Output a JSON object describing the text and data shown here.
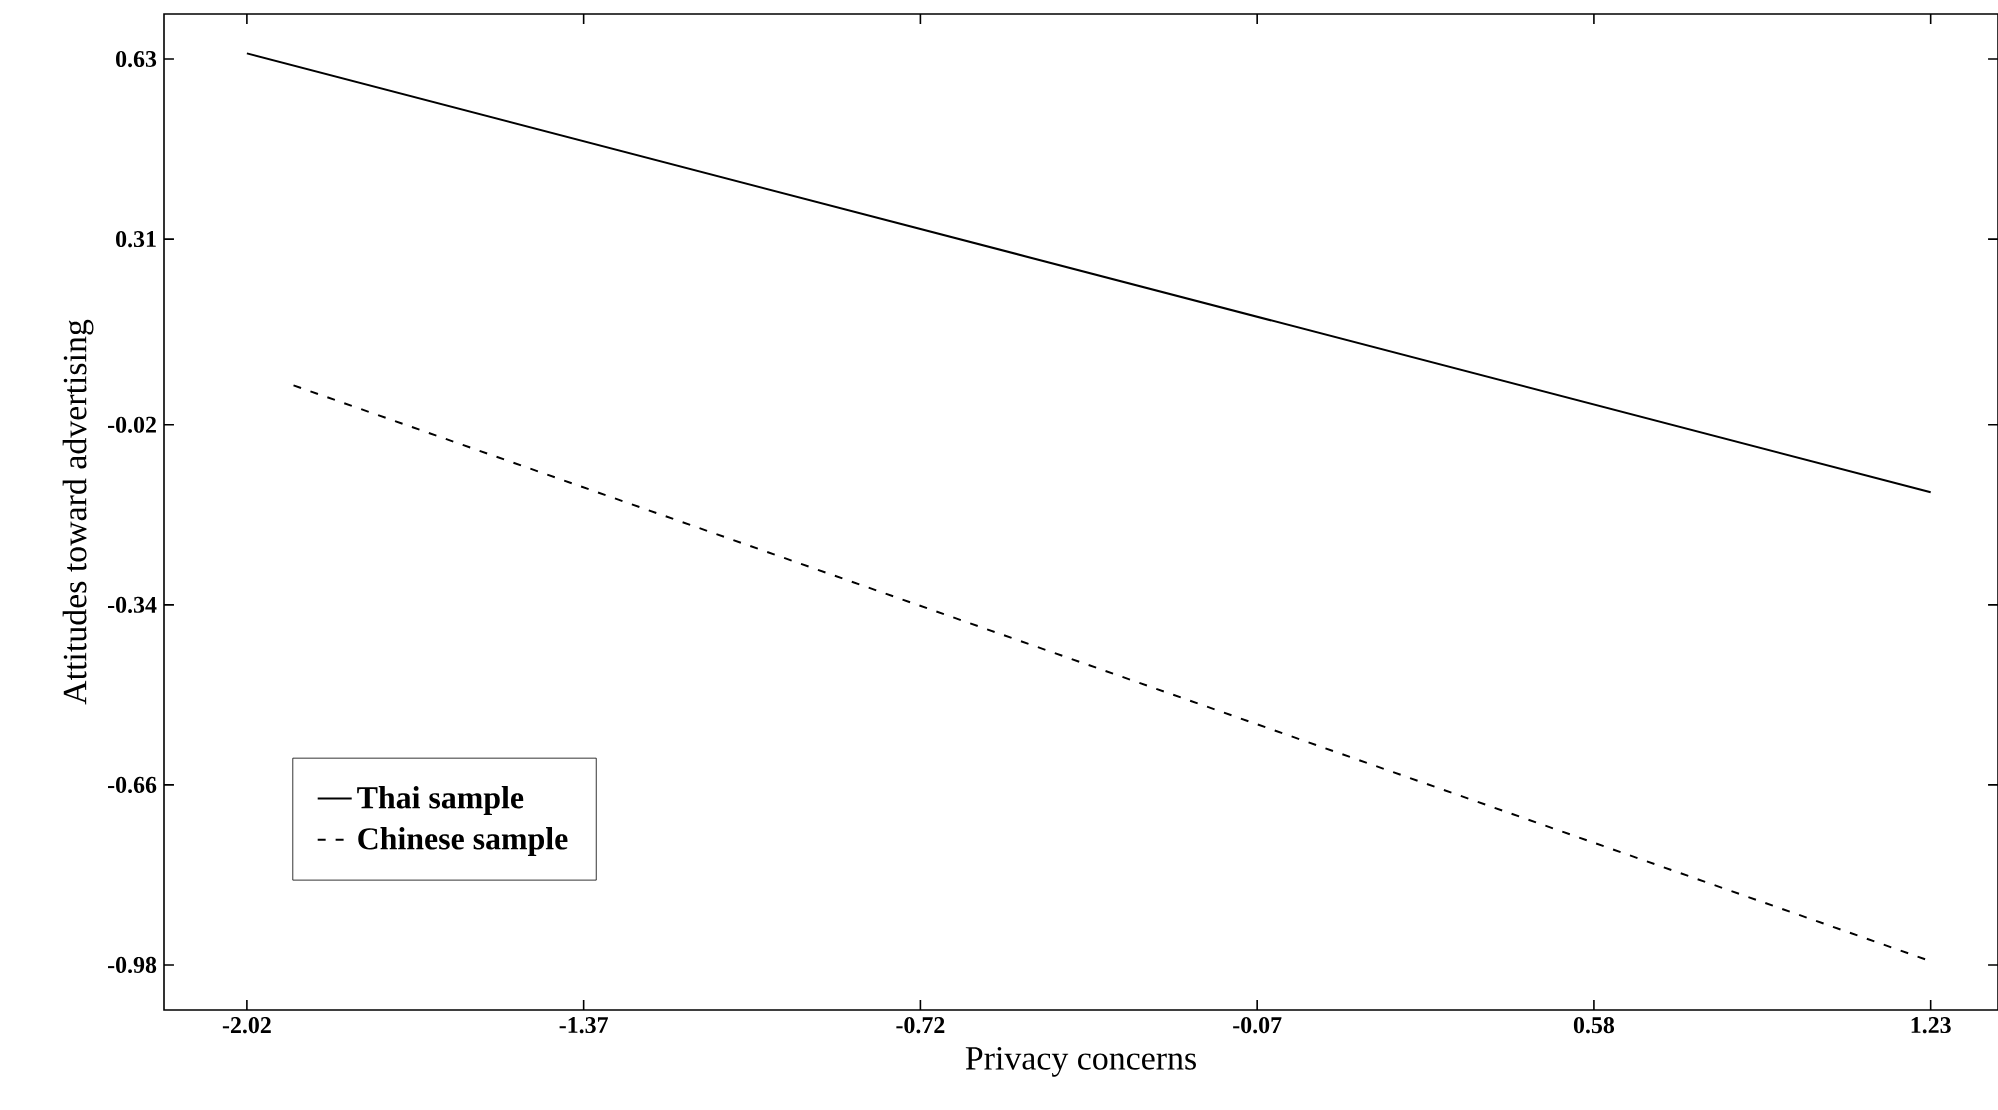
{
  "chart_data": {
    "type": "line",
    "xlabel": "Privacy concerns",
    "ylabel": "Attitudes toward advertising",
    "xlim": [
      -2.18,
      1.36
    ],
    "ylim": [
      -1.06,
      0.71
    ],
    "xticks": [
      -2.02,
      -1.37,
      -0.72,
      -0.07,
      0.58,
      1.23
    ],
    "yticks": [
      -0.98,
      -0.66,
      -0.34,
      -0.02,
      0.31,
      0.63
    ],
    "legend": "bottom left",
    "grid": false,
    "marker": "none",
    "series": [
      {
        "name": "Thai sample",
        "color": "#000000",
        "line_style": "solid",
        "x": [
          -2.02,
          1.23
        ],
        "values": [
          0.64,
          -0.14
        ]
      },
      {
        "name": "Chinese sample",
        "color": "#000000",
        "line_style": "dashed",
        "x": [
          -1.93,
          1.22
        ],
        "values": [
          0.05,
          -0.97
        ]
      }
    ]
  }
}
